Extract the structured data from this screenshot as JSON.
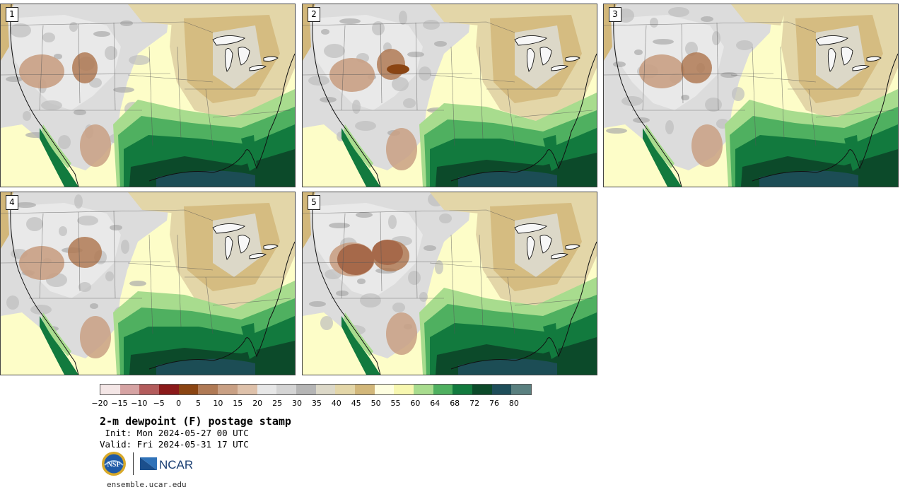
{
  "panels": [
    {
      "label": "1",
      "variant": 0
    },
    {
      "label": "2",
      "variant": 1
    },
    {
      "label": "3",
      "variant": 2
    },
    {
      "label": "4",
      "variant": 3
    },
    {
      "label": "5",
      "variant": 4
    }
  ],
  "colorbar": {
    "colors": [
      "#f4e6e6",
      "#d6a3a3",
      "#b35c5c",
      "#8b1a1a",
      "#8b4513",
      "#b07a55",
      "#c9a084",
      "#dec1aa",
      "#e7e7e7",
      "#d4d4d4",
      "#b5b5b5",
      "#dcd8c8",
      "#e3d6a8",
      "#d2b77a",
      "#fefee0",
      "#f7f7b0",
      "#a8dc8e",
      "#4fb060",
      "#127a3e",
      "#0c4a2a",
      "#1e4e5a",
      "#5a8080"
    ],
    "tick_labels": [
      "−20",
      "−15",
      "−10",
      "−5",
      "0",
      "5",
      "10",
      "15",
      "20",
      "25",
      "30",
      "35",
      "40",
      "45",
      "50",
      "55",
      "60",
      "64",
      "68",
      "72",
      "76",
      "80"
    ]
  },
  "title": "2-m dewpoint (F) postage stamp",
  "init_line": " Init: Mon 2024-05-27 00 UTC",
  "valid_line": "Valid: Fri 2024-05-31 17 UTC",
  "logos": {
    "nsf": "NSF",
    "ncar": "NCAR"
  },
  "footer_url": "ensemble.ucar.edu"
}
